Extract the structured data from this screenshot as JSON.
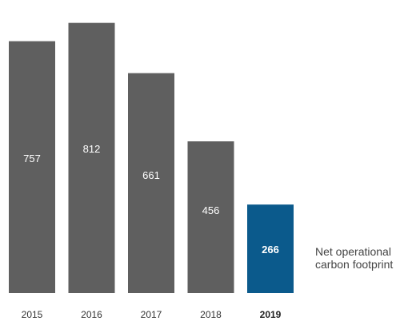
{
  "chart_data": {
    "type": "bar",
    "title": "",
    "xlabel": "",
    "ylabel": "",
    "categories": [
      "2015",
      "2016",
      "2017",
      "2018",
      "2019"
    ],
    "values": [
      757,
      812,
      661,
      456,
      266
    ],
    "value_labels": [
      "757",
      "812",
      "661",
      "456",
      "266"
    ],
    "ylim": [
      0,
      840
    ],
    "grid": false,
    "highlight_index": 4,
    "colors": {
      "bar": "#5f5f5f",
      "highlight_bar": "#0b5a8c",
      "label_on_bar": "#ffffff"
    },
    "annotation": {
      "lines": [
        "Net operational",
        "carbon footprint"
      ]
    }
  }
}
